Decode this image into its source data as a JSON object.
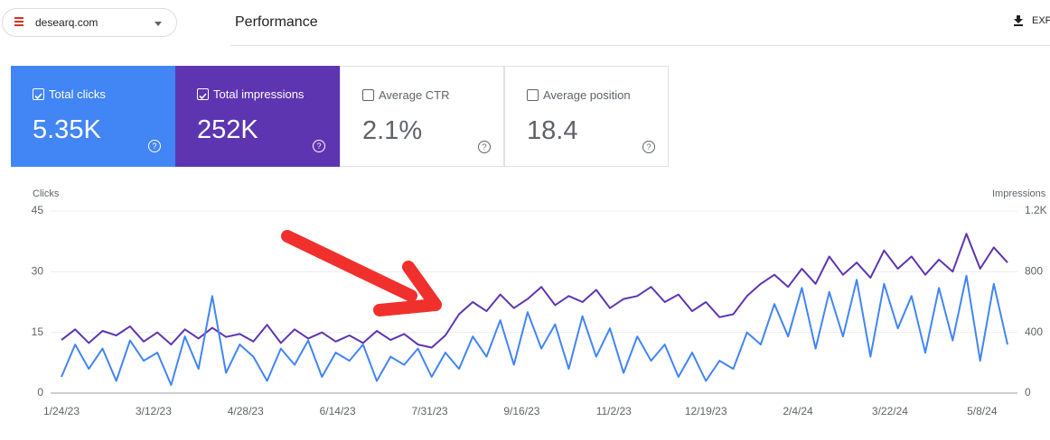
{
  "header": {
    "site": "desearq.com",
    "title": "Performance",
    "action": "EXP"
  },
  "metrics": [
    {
      "label": "Total clicks",
      "value": "5.35K",
      "checked": true,
      "color": "#4285f4"
    },
    {
      "label": "Total impressions",
      "value": "252K",
      "checked": true,
      "color": "#5e35b1"
    },
    {
      "label": "Average CTR",
      "value": "2.1%",
      "checked": false,
      "color": "#ffffff"
    },
    {
      "label": "Average position",
      "value": "18.4",
      "checked": false,
      "color": "#ffffff"
    }
  ],
  "chart_data": {
    "type": "line",
    "x": [
      "1/24/23",
      "1/31/23",
      "2/7/23",
      "2/14/23",
      "2/21/23",
      "2/28/23",
      "3/7/23",
      "3/14/23",
      "3/21/23",
      "3/28/23",
      "4/4/23",
      "4/11/23",
      "4/18/23",
      "4/25/23",
      "5/2/23",
      "5/9/23",
      "5/16/23",
      "5/23/23",
      "5/30/23",
      "6/6/23",
      "6/13/23",
      "6/20/23",
      "6/27/23",
      "7/4/23",
      "7/11/23",
      "7/18/23",
      "7/25/23",
      "8/1/23",
      "8/8/23",
      "8/15/23",
      "8/22/23",
      "8/29/23",
      "9/5/23",
      "9/12/23",
      "9/19/23",
      "9/26/23",
      "10/3/23",
      "10/10/23",
      "10/17/23",
      "10/24/23",
      "10/31/23",
      "11/7/23",
      "11/14/23",
      "11/21/23",
      "11/28/23",
      "12/5/23",
      "12/12/23",
      "12/19/23",
      "12/26/23",
      "1/2/24",
      "1/9/24",
      "1/16/24",
      "1/23/24",
      "1/30/24",
      "2/6/24",
      "2/13/24",
      "2/20/24",
      "2/27/24",
      "3/5/24",
      "3/12/24",
      "3/19/24",
      "3/26/24",
      "4/2/24",
      "4/9/24",
      "4/16/24",
      "4/23/24",
      "4/30/24",
      "5/7/24",
      "5/14/24",
      "5/21/24"
    ],
    "series": [
      {
        "name": "Clicks",
        "color": "#4285f4",
        "values": [
          4,
          12,
          6,
          11,
          3,
          13,
          8,
          10,
          2,
          14,
          6,
          24,
          5,
          12,
          9,
          3,
          11,
          7,
          13,
          4,
          10,
          8,
          12,
          3,
          9,
          7,
          11,
          4,
          10,
          6,
          14,
          9,
          18,
          7,
          20,
          11,
          17,
          6,
          19,
          9,
          16,
          5,
          14,
          8,
          12,
          4,
          10,
          3,
          8,
          6,
          15,
          12,
          22,
          14,
          26,
          11,
          25,
          14,
          28,
          9,
          27,
          16,
          24,
          10,
          26,
          13,
          29,
          8,
          27,
          12
        ]
      },
      {
        "name": "Impressions",
        "color": "#5e35b1",
        "axis": "y2",
        "values": [
          350,
          420,
          330,
          410,
          380,
          440,
          340,
          400,
          320,
          420,
          360,
          430,
          370,
          390,
          340,
          450,
          330,
          420,
          360,
          400,
          340,
          380,
          330,
          410,
          350,
          390,
          320,
          300,
          380,
          520,
          600,
          540,
          650,
          560,
          620,
          700,
          580,
          640,
          600,
          680,
          560,
          620,
          640,
          700,
          600,
          650,
          540,
          600,
          500,
          520,
          640,
          720,
          780,
          700,
          820,
          720,
          900,
          780,
          860,
          760,
          940,
          820,
          900,
          780,
          880,
          800,
          1050,
          820,
          960,
          860
        ]
      }
    ],
    "xlim": [
      "1/24/23",
      "5/21/24"
    ],
    "xticks": [
      "1/24/23",
      "3/12/23",
      "4/28/23",
      "6/14/23",
      "7/31/23",
      "9/16/23",
      "11/2/23",
      "12/19/23",
      "2/4/24",
      "3/22/24",
      "5/8/24"
    ],
    "ylim": [
      0,
      45
    ],
    "yticks": [
      0,
      15,
      30,
      45
    ],
    "y2lim": [
      0,
      1200
    ],
    "y2ticks": [
      0,
      400,
      800,
      {
        "value": 1200,
        "label": "1.2K"
      }
    ],
    "grid": true
  }
}
